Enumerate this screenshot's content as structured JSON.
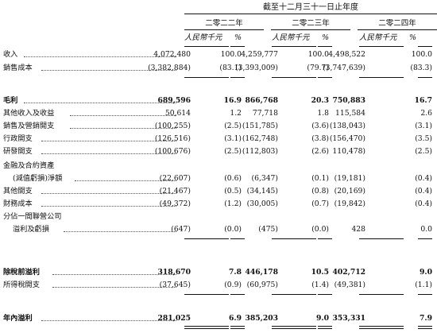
{
  "header": {
    "period": "截至十二月三十一日止年度",
    "years": [
      "二零二二年",
      "二零二三年",
      "二零二四年"
    ],
    "amount_unit": "人民幣千元",
    "pct_unit": "%"
  },
  "rows": [
    {
      "label": "收入",
      "indent": false,
      "bold": false,
      "v": [
        "4,072,480",
        "100.0",
        "4,259,777",
        "100.0",
        "4,498,522",
        "100.0"
      ]
    },
    {
      "label": "銷售成本",
      "indent": false,
      "bold": false,
      "v": [
        "(3,382,884)",
        "(83.1)",
        "(3,393,009)",
        "(79.7)",
        "(3,747,639)",
        "(83.3)"
      ]
    },
    {
      "label": "毛利",
      "indent": false,
      "bold": true,
      "v": [
        "689,596",
        "16.9",
        "866,768",
        "20.3",
        "750,883",
        "16.7"
      ]
    },
    {
      "label": "其他收入及收益",
      "indent": false,
      "bold": false,
      "v": [
        "50,614",
        "1.2",
        "77,718",
        "1.8",
        "115,584",
        "2.6"
      ]
    },
    {
      "label": "銷售及營銷開支",
      "indent": false,
      "bold": false,
      "v": [
        "(100,255)",
        "(2.5)",
        "(151,785)",
        "(3.6)",
        "(138,043)",
        "(3.1)"
      ]
    },
    {
      "label": "行政開支",
      "indent": false,
      "bold": false,
      "v": [
        "(126,516)",
        "(3.1)",
        "(162,748)",
        "(3.8)",
        "(156,470)",
        "(3.5)"
      ]
    },
    {
      "label": "研發開支",
      "indent": false,
      "bold": false,
      "v": [
        "(100,676)",
        "(2.5)",
        "(112,803)",
        "(2.6)",
        "110,478)",
        "(2.5)"
      ]
    },
    {
      "label": "金融及合約資產",
      "indent": false,
      "bold": false,
      "v": [
        "",
        "",
        "",
        "",
        "",
        ""
      ]
    },
    {
      "label": "(減值虧損)淨額",
      "indent": true,
      "bold": false,
      "v": [
        "(22,607)",
        "(0.6)",
        "(6,347)",
        "(0.1)",
        "(19,181)",
        "(0.4)"
      ]
    },
    {
      "label": "其他開支",
      "indent": false,
      "bold": false,
      "v": [
        "(21,467)",
        "(0.5)",
        "(34,145)",
        "(0.8)",
        "(20,169)",
        "(0.4)"
      ]
    },
    {
      "label": "財務成本",
      "indent": false,
      "bold": false,
      "v": [
        "(49,372)",
        "(1.2)",
        "(30,005)",
        "(0.7)",
        "(19,842)",
        "(0.4)"
      ]
    },
    {
      "label": "分佔一間聯營公司",
      "indent": false,
      "bold": false,
      "v": [
        "",
        "",
        "",
        "",
        "",
        ""
      ]
    },
    {
      "label": "溢利及虧損",
      "indent": true,
      "bold": false,
      "v": [
        "(647)",
        "(0.0)",
        "(475)",
        "(0.0)",
        "428",
        "0.0"
      ]
    },
    {
      "label": "除稅前溢利",
      "indent": false,
      "bold": true,
      "v": [
        "318,670",
        "7.8",
        "446,178",
        "10.5",
        "402,712",
        "9.0"
      ]
    },
    {
      "label": "所得稅開支",
      "indent": false,
      "bold": false,
      "v": [
        "(37,645)",
        "(0.9)",
        "(60,975)",
        "(1.4)",
        "(49,381)",
        "(1.1)"
      ]
    },
    {
      "label": "年內溢利",
      "indent": false,
      "bold": true,
      "v": [
        "281,025",
        "6.9",
        "385,203",
        "9.0",
        "353,331",
        "7.9"
      ]
    }
  ]
}
